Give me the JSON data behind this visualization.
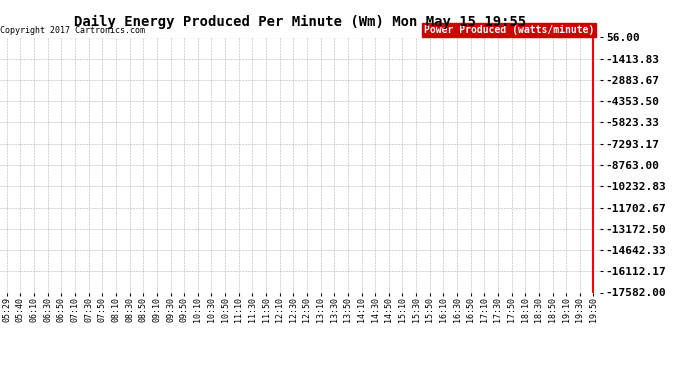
{
  "title": "Daily Energy Produced Per Minute (Wm) Mon May 15 19:55",
  "copyright": "Copyright 2017 Cartronics.com",
  "legend_label": "Power Produced (watts/minute)",
  "legend_bg": "#cc0000",
  "legend_text_color": "#ffffff",
  "background_color": "#ffffff",
  "plot_bg": "#ffffff",
  "grid_color": "#aaaaaa",
  "x_ticks": [
    "05:29",
    "05:40",
    "06:10",
    "06:30",
    "06:50",
    "07:10",
    "07:30",
    "07:50",
    "08:10",
    "08:30",
    "08:50",
    "09:10",
    "09:30",
    "09:50",
    "10:10",
    "10:30",
    "10:50",
    "11:10",
    "11:30",
    "11:50",
    "12:10",
    "12:30",
    "12:50",
    "13:10",
    "13:30",
    "13:50",
    "14:10",
    "14:30",
    "14:50",
    "15:10",
    "15:30",
    "15:50",
    "16:10",
    "16:30",
    "16:50",
    "17:10",
    "17:30",
    "17:50",
    "18:10",
    "18:30",
    "18:50",
    "19:10",
    "19:30",
    "19:50"
  ],
  "y_ticks": [
    56.0,
    -1413.83,
    -2883.67,
    -4353.5,
    -5823.33,
    -7293.17,
    -8763.0,
    -10232.83,
    -11702.67,
    -13172.5,
    -14642.33,
    -16112.17,
    -17582.0
  ],
  "y_min": -17582.0,
  "y_max": 56.0,
  "title_fontsize": 10,
  "axis_fontsize": 6,
  "copyright_fontsize": 6,
  "ytick_fontsize": 8,
  "red_line_color": "#ff0000",
  "title_color": "#000000"
}
